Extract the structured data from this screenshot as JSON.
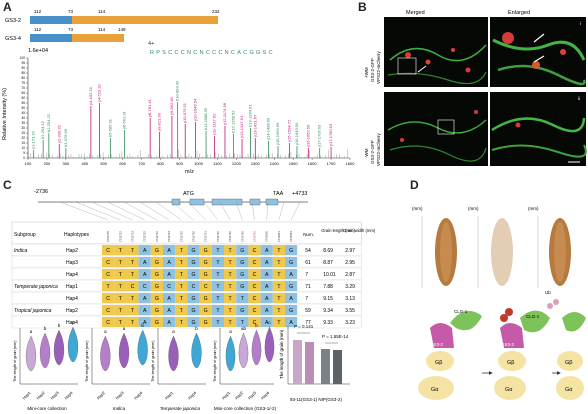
{
  "panel_labels": {
    "a": "A",
    "b": "B",
    "c": "C",
    "d": "D"
  },
  "panel_a": {
    "constructs": [
      {
        "name": "GS3-2",
        "marks": [
          "112",
          "73",
          "114",
          "232"
        ],
        "domains": [
          "K¹ˢ",
          "K¹ˢ K¹ˢ",
          "K¹ˢ"
        ]
      },
      {
        "name": "GS3-4",
        "marks": [
          "112",
          "73",
          "114",
          "149"
        ],
        "domains": [
          "K¹ˢ",
          "K¹ˢ K¹ˢ"
        ]
      }
    ],
    "intensity_max": "1.6e+04",
    "charge": "4+",
    "peptide": "RPSCCCNCNCCCNCACGGSC",
    "peptide_site": "Ub",
    "y_axis_label": "Relative Intensity (%)",
    "x_axis_label": "m/z",
    "y_ticks": [
      "0",
      "5",
      "10",
      "15",
      "20",
      "25",
      "30",
      "35",
      "40",
      "45",
      "50",
      "55",
      "60",
      "65",
      "70",
      "75",
      "80",
      "85",
      "90",
      "95",
      "100"
    ],
    "x_ticks": [
      "100",
      "200",
      "300",
      "400",
      "500",
      "600",
      "700",
      "800",
      "900",
      "1000",
      "1100",
      "1200",
      "1300",
      "1400",
      "1500",
      "1600",
      "1700",
      "1800"
    ]
  },
  "chart_data": {
    "type": "bar",
    "title": "",
    "xlabel": "m/z",
    "ylabel": "Relative Intensity (%)",
    "xlim": [
      100,
      1800
    ],
    "ylim": [
      0,
      100
    ],
    "grid": false,
    "peaks": [
      {
        "x": 130,
        "y": 8,
        "label": "y1-173.16",
        "color": "#2e8b57"
      },
      {
        "x": 180,
        "y": 18,
        "label": "b2-204.12",
        "color": "#2e8b57"
      },
      {
        "x": 210,
        "y": 25,
        "label": "b2-254.22",
        "color": "#2e8b57"
      },
      {
        "x": 265,
        "y": 14,
        "label": "y2-330.32",
        "color": "#c0157a"
      },
      {
        "x": 300,
        "y": 10,
        "label": "b3-378.66",
        "color": "#2e8b57"
      },
      {
        "x": 432,
        "y": 52,
        "label": "y4-432.24",
        "color": "#c0157a"
      },
      {
        "x": 478,
        "y": 55,
        "label": "y4-519.20",
        "color": "#c0157a"
      },
      {
        "x": 535,
        "y": 20,
        "label": "b5-585.91",
        "color": "#2e8b57"
      },
      {
        "x": 610,
        "y": 28,
        "label": "y6-661.31",
        "color": "#2e8b57"
      },
      {
        "x": 745,
        "y": 40,
        "label": "y8-781.41",
        "color": "#c0157a"
      },
      {
        "x": 795,
        "y": 26,
        "label": "y9-821.36",
        "color": "#c0157a"
      },
      {
        "x": 860,
        "y": 42,
        "label": "y9-862.49",
        "color": "#c0157a"
      },
      {
        "x": 890,
        "y": 56,
        "label": "b10-893.42",
        "color": "#2e8b57"
      },
      {
        "x": 930,
        "y": 34,
        "label": "y10-975.51",
        "color": "#c0157a"
      },
      {
        "x": 985,
        "y": 36,
        "label": "y10-1046.54",
        "color": "#c0157a"
      },
      {
        "x": 1040,
        "y": 27,
        "label": "b11-1088.35",
        "color": "#2e8b57"
      },
      {
        "x": 1085,
        "y": 22,
        "label": "y11-1117.61",
        "color": "#c0157a"
      },
      {
        "x": 1140,
        "y": 32,
        "label": "y12-1174.58",
        "color": "#c0157a"
      },
      {
        "x": 1185,
        "y": 24,
        "label": "b12-1268.52",
        "color": "#2e8b57"
      },
      {
        "x": 1230,
        "y": 19,
        "label": "y13-1347.61",
        "color": "#c0157a"
      },
      {
        "x": 1275,
        "y": 30,
        "label": "b13-1334.61",
        "color": "#2e8b57"
      },
      {
        "x": 1300,
        "y": 20,
        "label": "y13-1421.67",
        "color": "#c0157a"
      },
      {
        "x": 1370,
        "y": 17,
        "label": "y14-1488.69",
        "color": "#2e8b57"
      },
      {
        "x": 1420,
        "y": 12,
        "label": "y15-1569.56",
        "color": "#2e8b57"
      },
      {
        "x": 1480,
        "y": 15,
        "label": "y15-1598.72",
        "color": "#c0157a"
      },
      {
        "x": 1520,
        "y": 12,
        "label": "y16-1643.50",
        "color": "#2e8b57"
      },
      {
        "x": 1580,
        "y": 10,
        "label": "y16-1662.50",
        "color": "#c0157a"
      },
      {
        "x": 1640,
        "y": 10,
        "label": "y17-1709.63",
        "color": "#2e8b57"
      },
      {
        "x": 1700,
        "y": 11,
        "label": "y17-1780.53",
        "color": "#c0157a"
      }
    ]
  },
  "panel_b": {
    "col_merged": "Merged",
    "col_enlarged": "Enlarged",
    "rows": [
      {
        "side1": "GS3-2-GFP",
        "side2": "VPS22-mCherry",
        "side3": "+WM",
        "tag": "i"
      },
      {
        "side1": "GS3-2-GFP",
        "side2": "VPS22-mCherry",
        "side3": "-WM",
        "tag": "ii"
      }
    ]
  },
  "panel_c": {
    "gene_left": "-2736",
    "gene_start": "ATG",
    "gene_stop": "TAA",
    "gene_right": "+4733",
    "headers": [
      "Subgroup",
      "Haplotypes",
      "Num.",
      "Grain length (mm)",
      "Grain width (mm)"
    ],
    "snp_ids": [
      "2731705",
      "2731712",
      "2731713",
      "2731715",
      "2731716",
      "2731724",
      "2731725",
      "2731730",
      "2731731",
      "2731736",
      "2731760",
      "2731766",
      "2731792",
      "2731800",
      "2731821",
      "2731843"
    ],
    "rows": [
      {
        "subgroup": "Indica",
        "hap": "Hap2",
        "bases": "CTTAGATGGTTGCATG",
        "num": "54",
        "gl": "8.69",
        "gw": "2.97"
      },
      {
        "subgroup": "",
        "hap": "Hap3",
        "bases": "CTTAGATGGTTGCATG",
        "num": "61",
        "gl": "8.87",
        "gw": "2.95"
      },
      {
        "subgroup": "",
        "hap": "Hap4",
        "bases": "CTTAGATGGTTGCATA",
        "num": "7",
        "gl": "10.01",
        "gw": "2.87"
      },
      {
        "subgroup": "Temperate japonica",
        "hap": "Hap1",
        "bases": "TTCCGCTCCTTGCATG",
        "num": "71",
        "gl": "7.88",
        "gw": "3.29"
      },
      {
        "subgroup": "",
        "hap": "Hap4",
        "bases": "CTTAGATGGTTTCATA",
        "num": "7",
        "gl": "9.15",
        "gw": "3.13"
      },
      {
        "subgroup": "Tropical japonica",
        "hap": "Hap2",
        "bases": "CTTAGATGGTTGCATG",
        "num": "59",
        "gl": "9.34",
        "gw": "3.55"
      },
      {
        "subgroup": "",
        "hap": "Hap4",
        "bases": "CTTAGATGGTTTCATA",
        "num": "77",
        "gl": "9.33",
        "gw": "3.23"
      }
    ],
    "violins": [
      {
        "title": "Mini-core collection",
        "ylabel": "The length of grain (mm)",
        "cats": [
          "Hap1",
          "Hap2",
          "Hap3",
          "Hap4"
        ],
        "letters": [
          "a",
          "b",
          "b",
          "c"
        ]
      },
      {
        "title": "Indica",
        "ylabel": "The length of grain (mm)",
        "cats": [
          "Hap2",
          "Hap3",
          "Hap4"
        ],
        "letters": [
          "a",
          "a",
          "b"
        ]
      },
      {
        "title": "Temperate japonica",
        "ylabel": "The length of grain (mm)",
        "cats": [
          "Hap1",
          "Hap4"
        ],
        "letters": [
          "a",
          "b"
        ]
      },
      {
        "title": "Mini-core collection (GS3-1/-2)",
        "ylabel": "The length of grain (mm)",
        "cats": [
          "Hap1",
          "Hap2",
          "Hap3",
          "Hap4"
        ],
        "letters": [
          "a",
          "ab",
          "b",
          "c"
        ]
      }
    ],
    "bar_panel": {
      "ylabel": "The length of grain (mm)",
      "p1": "P = 0.141",
      "p2": "P = 1.55E-14",
      "groups": [
        "GS3-1 (OE)",
        "GS3-1 (KO)",
        "NIP",
        "NIP (OE)"
      ],
      "foot": "93-11(GS3-1)  NIP(GS3-2)"
    }
  },
  "panel_d": {
    "unit": "(mm)",
    "ticks": [
      "10",
      "8",
      "6",
      "4",
      "2",
      "0"
    ],
    "labels": {
      "clg": "CLG-1",
      "gs3": "GS3-2",
      "gb": "Gβ",
      "ga": "Gα",
      "ub": "Ub"
    }
  }
}
